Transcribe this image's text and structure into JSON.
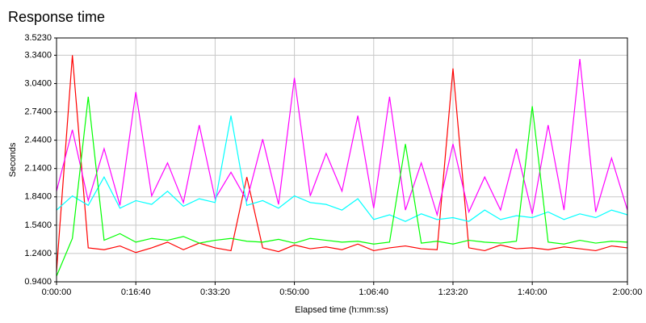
{
  "chart_data": {
    "type": "line",
    "title": "Response time",
    "xlabel": "Elapsed time (h:mm:ss)",
    "ylabel": "Seconds",
    "x": [
      0,
      200,
      400,
      600,
      800,
      1000,
      1200,
      1400,
      1600,
      1800,
      2000,
      2200,
      2400,
      2600,
      2800,
      3000,
      3200,
      3400,
      3600,
      3800,
      4000,
      4200,
      4400,
      4600,
      4800,
      5000,
      5200,
      5400,
      5600,
      5800,
      6000,
      6200,
      6400,
      6600,
      6800,
      7000,
      7200
    ],
    "series": [
      {
        "color": "#ff0000",
        "values": [
          1.05,
          3.34,
          1.3,
          1.28,
          1.32,
          1.25,
          1.3,
          1.36,
          1.28,
          1.35,
          1.3,
          1.27,
          2.05,
          1.3,
          1.26,
          1.33,
          1.29,
          1.31,
          1.28,
          1.34,
          1.27,
          1.3,
          1.32,
          1.29,
          1.28,
          3.2,
          1.3,
          1.27,
          1.33,
          1.29,
          1.3,
          1.28,
          1.31,
          1.29,
          1.27,
          1.32,
          1.3
        ]
      },
      {
        "color": "#ff00ff",
        "values": [
          1.9,
          2.55,
          1.8,
          2.35,
          1.75,
          2.95,
          1.85,
          2.2,
          1.78,
          2.6,
          1.82,
          2.1,
          1.8,
          2.45,
          1.76,
          3.1,
          1.85,
          2.3,
          1.9,
          2.7,
          1.72,
          2.9,
          1.7,
          2.2,
          1.65,
          2.4,
          1.68,
          2.05,
          1.7,
          2.35,
          1.66,
          2.6,
          1.7,
          3.3,
          1.68,
          2.25,
          1.7
        ]
      },
      {
        "color": "#00ffff",
        "values": [
          1.7,
          1.85,
          1.75,
          2.05,
          1.72,
          1.8,
          1.76,
          1.9,
          1.74,
          1.82,
          1.78,
          2.7,
          1.75,
          1.8,
          1.72,
          1.85,
          1.78,
          1.76,
          1.7,
          1.82,
          1.6,
          1.65,
          1.58,
          1.66,
          1.6,
          1.62,
          1.58,
          1.7,
          1.6,
          1.64,
          1.62,
          1.68,
          1.6,
          1.66,
          1.62,
          1.7,
          1.65
        ]
      },
      {
        "color": "#00ff00",
        "values": [
          1.0,
          1.4,
          2.9,
          1.38,
          1.45,
          1.36,
          1.4,
          1.38,
          1.42,
          1.35,
          1.38,
          1.4,
          1.37,
          1.36,
          1.39,
          1.35,
          1.4,
          1.38,
          1.36,
          1.37,
          1.34,
          1.36,
          2.4,
          1.35,
          1.37,
          1.34,
          1.38,
          1.36,
          1.35,
          1.37,
          2.8,
          1.36,
          1.34,
          1.38,
          1.35,
          1.37,
          1.36
        ]
      }
    ],
    "xlim": [
      0,
      7200
    ],
    "xticks": [
      {
        "value": 0,
        "label": "0:00:00"
      },
      {
        "value": 1000,
        "label": "0:16:40"
      },
      {
        "value": 2000,
        "label": "0:33:20"
      },
      {
        "value": 3000,
        "label": "0:50:00"
      },
      {
        "value": 4000,
        "label": "1:06:40"
      },
      {
        "value": 5000,
        "label": "1:23:20"
      },
      {
        "value": 6000,
        "label": "1:40:00"
      },
      {
        "value": 7200,
        "label": "2:00:00"
      }
    ],
    "ylim": [
      0.94,
      3.523
    ],
    "yticks": [
      {
        "value": 0.94,
        "label": "0.9400"
      },
      {
        "value": 1.24,
        "label": "1.2400"
      },
      {
        "value": 1.54,
        "label": "1.5400"
      },
      {
        "value": 1.84,
        "label": "1.8400"
      },
      {
        "value": 2.14,
        "label": "2.1400"
      },
      {
        "value": 2.44,
        "label": "2.4400"
      },
      {
        "value": 2.74,
        "label": "2.7400"
      },
      {
        "value": 3.04,
        "label": "3.0400"
      },
      {
        "value": 3.34,
        "label": "3.3400"
      },
      {
        "value": 3.523,
        "label": "3.5230"
      }
    ],
    "grid": true
  }
}
